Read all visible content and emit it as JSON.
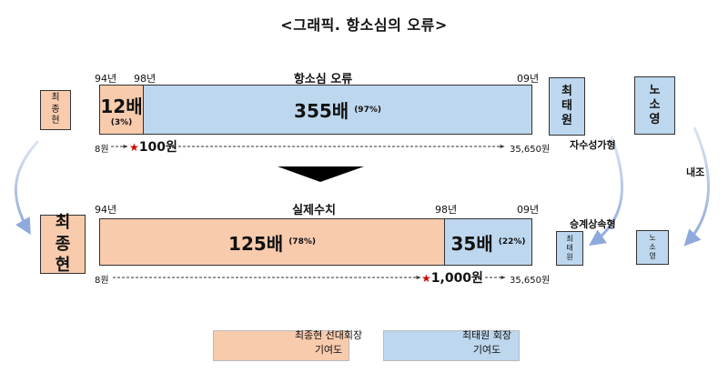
{
  "title": "<그래픽. 항소심의 오류>",
  "top_section": {
    "header": "항소심 오류",
    "year_start": "94년",
    "year_mid": "98년",
    "year_end": "09년",
    "peach_value": "12배",
    "peach_pct": "(3%)",
    "blue_value": "355배",
    "blue_pct": "(97%)",
    "won_start": "8원",
    "won_mid": "100원",
    "won_end": "35,650원"
  },
  "bottom_section": {
    "header": "실제수치",
    "year_start": "94년",
    "year_mid": "98년",
    "year_end": "09년",
    "peach_value": "125배",
    "peach_pct": "(78%)",
    "blue_value": "35배",
    "blue_pct": "(22%)",
    "won_start": "8원",
    "won_mid": "1,000원",
    "won_end": "35,650원"
  },
  "persons": {
    "left_small": [
      "최",
      "종",
      "현"
    ],
    "left_large": [
      "최",
      "종",
      "현"
    ],
    "mid_top": [
      "최",
      "태",
      "원"
    ],
    "mid_bottom": [
      "최",
      "태",
      "원"
    ],
    "right_top": [
      "노",
      "소",
      "영"
    ],
    "right_bottom": [
      "노",
      "소",
      "영"
    ]
  },
  "labels": {
    "self_made": "자수성가형",
    "inherited": "승계상속형",
    "internal": "내조"
  },
  "legend": [
    {
      "line1": "최종현 선대회장",
      "line2": "기여도",
      "color": "#f8cbad"
    },
    {
      "line1": "최태원 회장",
      "line2": "기여도",
      "color": "#bdd7ee"
    }
  ],
  "colors": {
    "peach": "#f8cbad",
    "blue": "#bdd7ee",
    "star": "#d00000"
  }
}
